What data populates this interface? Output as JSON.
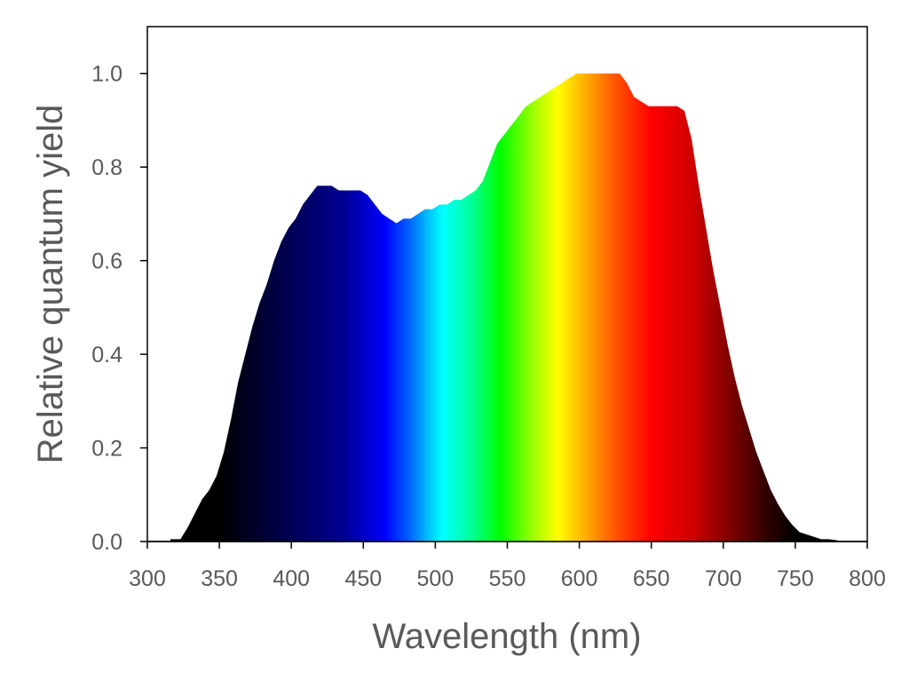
{
  "chart_data": {
    "type": "area",
    "title": "",
    "xlabel": "Wavelength (nm)",
    "ylabel": "Relative quantum yield",
    "xlim": [
      300,
      800
    ],
    "ylim": [
      0,
      1.1
    ],
    "xticks": [
      300,
      350,
      400,
      450,
      500,
      550,
      600,
      650,
      700,
      750,
      800
    ],
    "yticks": [
      0.0,
      0.2,
      0.4,
      0.6,
      0.8,
      1.0
    ],
    "ytick_labels": [
      "0.0",
      "0.2",
      "0.4",
      "0.6",
      "0.8",
      "1.0"
    ],
    "grid": false,
    "fill": "visible-spectrum gradient",
    "series": [
      {
        "x": [
          316,
          323,
          328,
          333,
          338,
          343,
          348,
          353,
          358,
          363,
          368,
          373,
          378,
          383,
          388,
          393,
          398,
          403,
          408,
          413,
          418,
          423,
          428,
          433,
          438,
          443,
          448,
          453,
          458,
          463,
          468,
          473,
          478,
          483,
          488,
          493,
          498,
          503,
          508,
          513,
          518,
          523,
          528,
          533,
          538,
          543,
          548,
          553,
          558,
          563,
          568,
          573,
          578,
          583,
          588,
          593,
          598,
          603,
          608,
          613,
          618,
          623,
          628,
          633,
          638,
          643,
          648,
          653,
          658,
          663,
          668,
          673,
          678,
          683,
          688,
          693,
          698,
          703,
          708,
          713,
          718,
          723,
          728,
          733,
          738,
          743,
          748,
          753,
          758,
          763,
          768,
          773,
          778,
          783
        ],
        "y": [
          0.005,
          0.005,
          0.03,
          0.06,
          0.09,
          0.11,
          0.14,
          0.19,
          0.26,
          0.34,
          0.4,
          0.46,
          0.51,
          0.55,
          0.6,
          0.64,
          0.67,
          0.69,
          0.72,
          0.74,
          0.76,
          0.76,
          0.76,
          0.75,
          0.75,
          0.75,
          0.75,
          0.74,
          0.72,
          0.7,
          0.69,
          0.68,
          0.69,
          0.69,
          0.7,
          0.71,
          0.71,
          0.72,
          0.72,
          0.73,
          0.73,
          0.74,
          0.75,
          0.77,
          0.81,
          0.85,
          0.87,
          0.89,
          0.91,
          0.93,
          0.94,
          0.95,
          0.96,
          0.97,
          0.98,
          0.99,
          1.0,
          1.0,
          1.0,
          1.0,
          1.0,
          1.0,
          1.0,
          0.98,
          0.95,
          0.94,
          0.93,
          0.93,
          0.93,
          0.93,
          0.93,
          0.92,
          0.86,
          0.76,
          0.67,
          0.58,
          0.5,
          0.42,
          0.35,
          0.29,
          0.24,
          0.19,
          0.15,
          0.11,
          0.08,
          0.055,
          0.035,
          0.02,
          0.015,
          0.01,
          0.005,
          0.005,
          0.003,
          0.0
        ]
      }
    ]
  }
}
